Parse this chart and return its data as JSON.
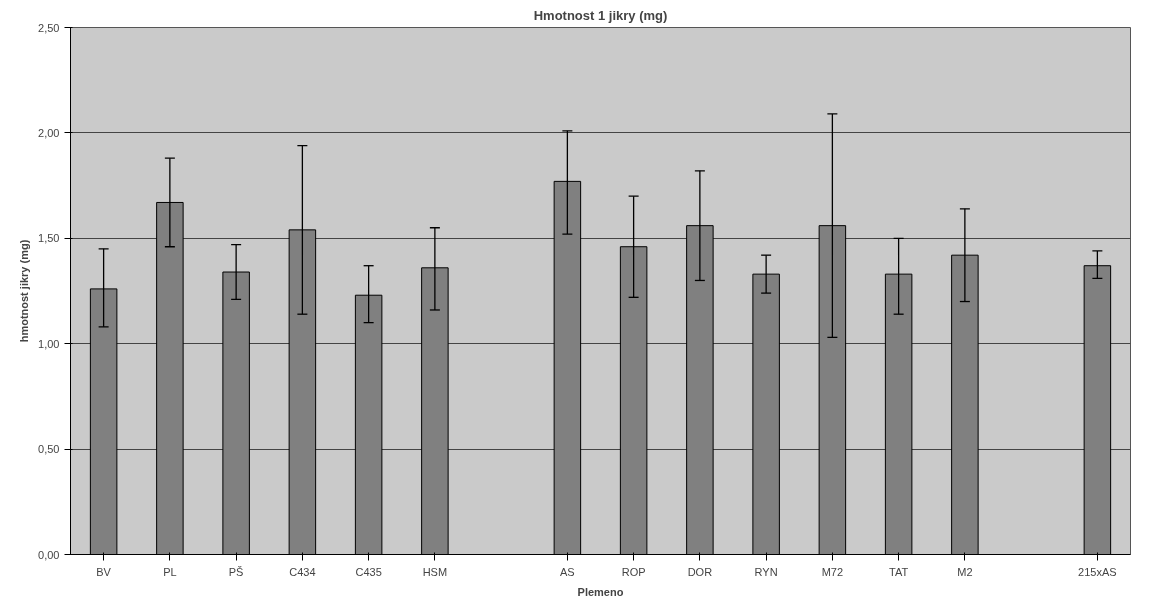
{
  "chart_data": {
    "type": "bar",
    "title": "Hmotnost 1 jikry (mg)",
    "xlabel": "Plemeno",
    "ylabel": "hmotnost jikry (mg)",
    "categories": [
      "BV",
      "PL",
      "PŠ",
      "C434",
      "C435",
      "HSM",
      null,
      "AS",
      "ROP",
      "DOR",
      "RYN",
      "M72",
      "TAT",
      "M2",
      null,
      "215xAS"
    ],
    "values": [
      1.26,
      1.67,
      1.34,
      1.54,
      1.23,
      1.36,
      null,
      1.77,
      1.46,
      1.56,
      1.33,
      1.56,
      1.33,
      1.42,
      null,
      1.37
    ],
    "errors": [
      [
        1.08,
        1.45
      ],
      [
        1.46,
        1.88
      ],
      [
        1.21,
        1.47
      ],
      [
        1.14,
        1.94
      ],
      [
        1.1,
        1.37
      ],
      [
        1.16,
        1.55
      ],
      null,
      [
        1.52,
        2.01
      ],
      [
        1.22,
        1.7
      ],
      [
        1.3,
        1.82
      ],
      [
        1.24,
        1.42
      ],
      [
        1.03,
        2.09
      ],
      [
        1.14,
        1.5
      ],
      [
        1.2,
        1.64
      ],
      null,
      [
        1.31,
        1.44
      ]
    ],
    "color": "#808080",
    "ylim": [
      0,
      2.5
    ],
    "yticks": [
      {
        "value": 0,
        "label": "0,00"
      },
      {
        "value": 0.5,
        "label": "0,50"
      },
      {
        "value": 1.0,
        "label": "1,00"
      },
      {
        "value": 1.5,
        "label": "1,50"
      },
      {
        "value": 2.0,
        "label": "2,00"
      },
      {
        "value": 2.5,
        "label": "2,50"
      }
    ],
    "grid": "y"
  }
}
